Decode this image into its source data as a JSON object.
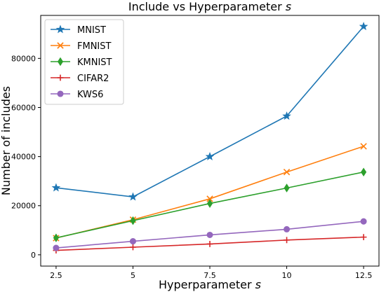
{
  "chart_data": {
    "type": "line",
    "title": "Include vs Hyperparameter s",
    "xlabel": "Hyperparameter s",
    "ylabel": "Number of includes",
    "x": [
      2.5,
      5,
      7.5,
      10,
      12.5
    ],
    "x_tick_labels": [
      "2.5",
      "5",
      "7.5",
      "10",
      "12.5"
    ],
    "y_ticks": [
      0,
      20000,
      40000,
      60000,
      80000
    ],
    "y_tick_labels": [
      "0",
      "20000",
      "40000",
      "60000",
      "80000"
    ],
    "xlim": [
      2.0,
      13.0
    ],
    "ylim": [
      -4600,
      97500
    ],
    "grid": false,
    "legend_position": "top-left",
    "series": [
      {
        "name": "MNIST",
        "color": "#1f77b4",
        "marker": "star",
        "values": [
          27300,
          23600,
          40000,
          56500,
          93000
        ]
      },
      {
        "name": "FMNIST",
        "color": "#ff7f0e",
        "marker": "x",
        "values": [
          6800,
          14300,
          22800,
          33700,
          44200
        ]
      },
      {
        "name": "KMNIST",
        "color": "#2ca02c",
        "marker": "diamond",
        "values": [
          6900,
          13900,
          20900,
          27200,
          33700
        ]
      },
      {
        "name": "CIFAR2",
        "color": "#d62728",
        "marker": "plus",
        "values": [
          1800,
          3100,
          4400,
          6000,
          7200
        ]
      },
      {
        "name": "KWS6",
        "color": "#9467bd",
        "marker": "circle",
        "values": [
          2800,
          5500,
          8100,
          10400,
          13600
        ]
      }
    ]
  }
}
